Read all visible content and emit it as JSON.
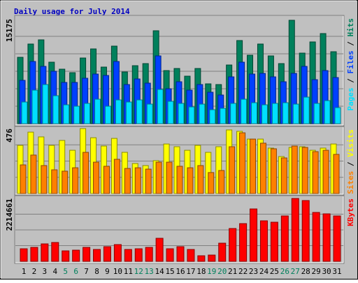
{
  "chart_data": [
    {
      "type": "bar",
      "title": "Daily usage for July 2014",
      "categories": [
        "1",
        "2",
        "3",
        "4",
        "5",
        "6",
        "7",
        "8",
        "9",
        "10",
        "11",
        "12",
        "13",
        "14",
        "15",
        "16",
        "17",
        "18",
        "19",
        "20",
        "21",
        "22",
        "23",
        "24",
        "25",
        "26",
        "27",
        "28",
        "29",
        "30",
        "31"
      ],
      "category_colors": [
        "#000000",
        "#000000",
        "#000000",
        "#000000",
        "#00805c",
        "#00805c",
        "#000000",
        "#000000",
        "#000000",
        "#000000",
        "#000000",
        "#00805c",
        "#00805c",
        "#000000",
        "#000000",
        "#000000",
        "#000000",
        "#000000",
        "#00805c",
        "#00805c",
        "#000000",
        "#000000",
        "#000000",
        "#000000",
        "#000000",
        "#00805c",
        "#00805c",
        "#000000",
        "#000000",
        "#000000",
        "#000000"
      ],
      "legend_separator": " / ",
      "ylim": [
        0,
        15175
      ],
      "yticks": [
        15175
      ],
      "grid_lines": 6,
      "series": [
        {
          "name": "Hits",
          "color": "#00805c",
          "values": [
            9611,
            11533,
            12140,
            8903,
            7891,
            7385,
            9510,
            10825,
            8195,
            11230,
            7486,
            8397,
            8700,
            13455,
            7689,
            7992,
            6879,
            7992,
            5767,
            5665,
            8498,
            12039,
            9914,
            11533,
            9813,
            8700,
            14973,
            10218,
            11837,
            13050,
            10420
          ]
        },
        {
          "name": "Files",
          "color": "#0040ff",
          "values": [
            6272,
            9004,
            8296,
            7588,
            5969,
            5969,
            6576,
            7183,
            6980,
            9004,
            5665,
            6475,
            5868,
            9813,
            5058,
            6070,
            4856,
            5665,
            4552,
            4148,
            6778,
            8903,
            7183,
            7284,
            6778,
            6070,
            7284,
            8296,
            6373,
            7689,
            6677
          ]
        },
        {
          "name": "Pages",
          "color": "#00e0ff",
          "values": [
            3136,
            4856,
            5665,
            4047,
            2731,
            2529,
            2934,
            3541,
            2529,
            3440,
            3136,
            3440,
            2832,
            4957,
            3237,
            2934,
            2428,
            2832,
            2023,
            2226,
            2934,
            3541,
            3035,
            2731,
            2934,
            3035,
            2832,
            3844,
            2934,
            3338,
            2327
          ]
        }
      ]
    },
    {
      "type": "bar",
      "legend_separator": " / ",
      "ylim": [
        0,
        476
      ],
      "yticks": [
        476
      ],
      "grid_lines": 4,
      "series": [
        {
          "name": "Visits",
          "color": "#ffff00",
          "values": [
            353,
            450,
            415,
            353,
            389,
            317,
            476,
            409,
            348,
            404,
            302,
            220,
            205,
            241,
            363,
            343,
            317,
            353,
            302,
            343,
            466,
            456,
            399,
            399,
            333,
            271,
            338,
            343,
            317,
            333,
            363
          ]
        },
        {
          "name": "Sites",
          "color": "#ff8000",
          "values": [
            210,
            282,
            205,
            174,
            164,
            189,
            302,
            230,
            200,
            251,
            184,
            189,
            179,
            230,
            230,
            200,
            189,
            205,
            154,
            169,
            343,
            445,
            399,
            369,
            328,
            261,
            348,
            338,
            307,
            317,
            287
          ]
        }
      ]
    },
    {
      "type": "bar",
      "ylim": [
        0,
        2214661
      ],
      "yticks": [
        2214661
      ],
      "grid_lines": 4,
      "series": [
        {
          "name": "KBytes",
          "color": "#ff0000",
          "values": [
            442932,
            492147,
            615184,
            664398,
            369110,
            393717,
            492147,
            418325,
            516754,
            590576,
            418325,
            442932,
            492147,
            812042,
            442932,
            516754,
            418325,
            196859,
            221466,
            639791,
            1156545,
            1328797,
            1845551,
            1427226,
            1377967,
            1599477,
            2214661,
            2140839,
            1722514,
            1673299,
            1599477
          ]
        }
      ]
    }
  ]
}
